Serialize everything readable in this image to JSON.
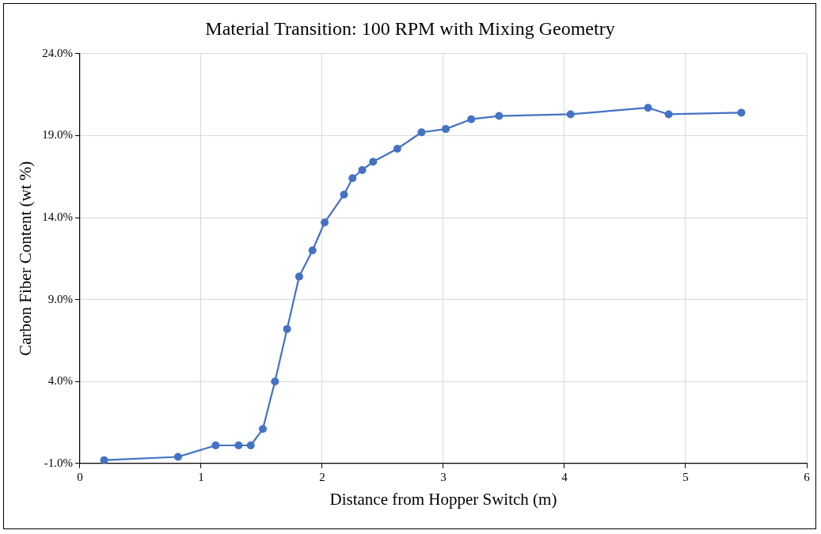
{
  "chart_data": {
    "type": "line",
    "title": "Material Transition: 100 RPM with Mixing Geometry",
    "xlabel": "Distance from Hopper Switch (m)",
    "ylabel": "Carbon Fiber Content (wt %)",
    "x": [
      0.2,
      0.81,
      1.12,
      1.31,
      1.41,
      1.51,
      1.61,
      1.71,
      1.81,
      1.92,
      2.02,
      2.18,
      2.25,
      2.33,
      2.42,
      2.62,
      2.82,
      3.02,
      3.23,
      3.46,
      4.05,
      4.69,
      4.86,
      5.46
    ],
    "series": [
      {
        "color": "#4472c4",
        "values": [
          -0.8,
          -0.6,
          0.1,
          0.1,
          0.1,
          1.1,
          4.0,
          7.2,
          10.4,
          12.0,
          13.7,
          15.4,
          16.4,
          16.9,
          17.4,
          18.2,
          19.2,
          19.4,
          20.0,
          20.2,
          20.3,
          20.7,
          20.3,
          20.4
        ]
      }
    ],
    "xlim": [
      0,
      6
    ],
    "xticks": [
      0,
      1,
      2,
      3,
      4,
      5,
      6
    ],
    "ylim": [
      -1,
      24
    ],
    "yticks": [
      {
        "value": -1,
        "label": "-1.0%"
      },
      {
        "value": 4,
        "label": "4.0%"
      },
      {
        "value": 9,
        "label": "9.0%"
      },
      {
        "value": 14,
        "label": "14.0%"
      },
      {
        "value": 19,
        "label": "19.0%"
      },
      {
        "value": 24,
        "label": "24.0%"
      }
    ],
    "grid": true,
    "legend": false,
    "marker": "circle",
    "line_style": "solid"
  }
}
